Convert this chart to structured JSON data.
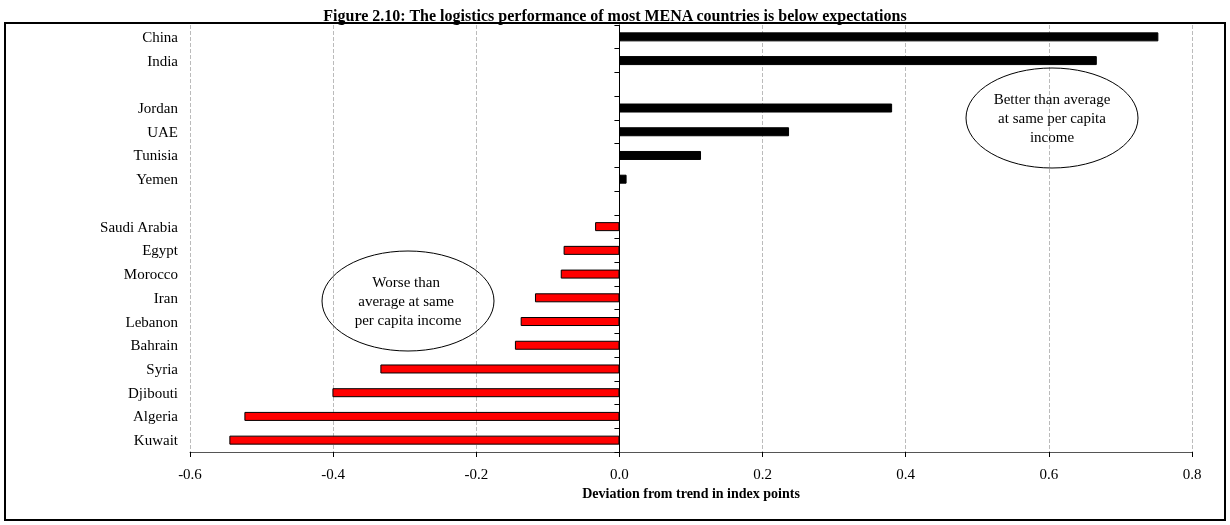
{
  "chart_data": {
    "type": "bar",
    "orientation": "horizontal",
    "title": "Figure 2.10: The logistics performance of most MENA countries is below expectations",
    "xlabel": "Deviation from trend in index points",
    "categories": [
      "China",
      "India",
      null,
      "Jordan",
      "UAE",
      "Tunisia",
      "Yemen",
      null,
      "Saudi Arabia",
      "Egypt",
      "Morocco",
      "Iran",
      "Lebanon",
      "Bahrain",
      "Syria",
      "Djibouti",
      "Algeria",
      "Kuwait"
    ],
    "values": [
      0.753,
      0.667,
      null,
      0.381,
      0.237,
      0.114,
      0.01,
      null,
      -0.034,
      -0.078,
      -0.082,
      -0.118,
      -0.138,
      -0.146,
      -0.334,
      -0.401,
      -0.524,
      -0.545
    ],
    "colors": [
      "#000000",
      "#000000",
      "#000000",
      "#000000",
      "#000000",
      "#000000",
      "#000000",
      "#000000",
      "#ff0000",
      "#ff0000",
      "#ff0000",
      "#ff0000",
      "#ff0000",
      "#ff0000",
      "#ff0000",
      "#ff0000",
      "#ff0000",
      "#ff0000"
    ],
    "xlim": [
      -0.6,
      0.8
    ],
    "xticks": [
      -0.6,
      -0.4,
      -0.2,
      {
        "value": 0,
        "label": "0.0"
      },
      0.2,
      0.4,
      0.6,
      0.8
    ],
    "grid": "x",
    "annotations": [
      "Better than average at same per capita income",
      "Worse than average at same per capita income"
    ]
  }
}
